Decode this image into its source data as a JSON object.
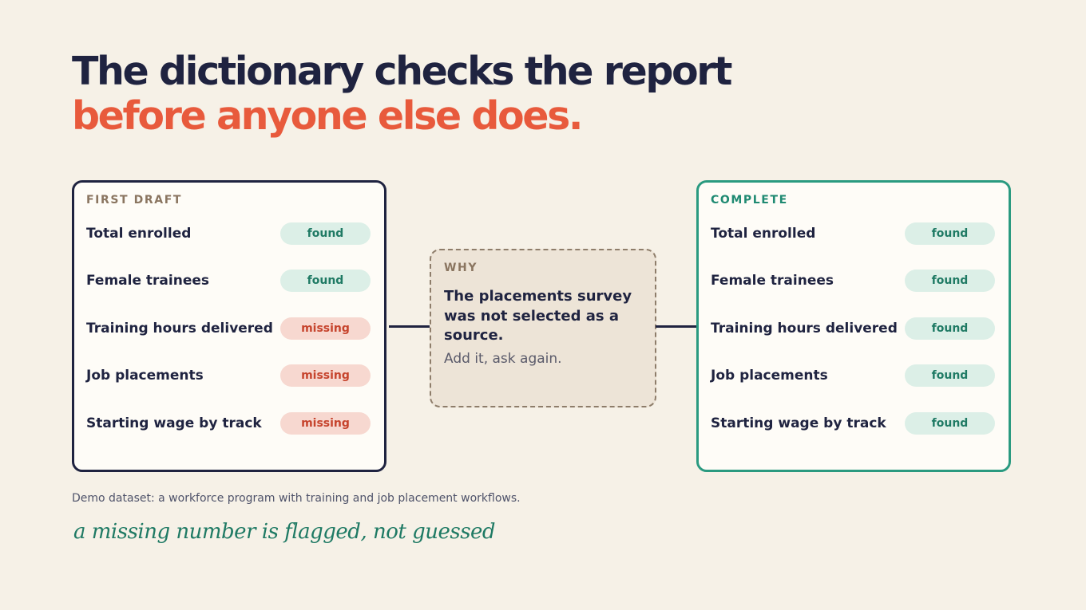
{
  "headline": {
    "line1": "The dictionary checks the report",
    "line2": "before anyone else does."
  },
  "colors": {
    "navy": "#1f2340",
    "coral": "#e85a3c",
    "teal": "#2a9a80",
    "found_bg": "#dcefe7",
    "missing_bg": "#f7d8d0"
  },
  "first_draft": {
    "label": "FIRST DRAFT",
    "rows": [
      {
        "label": "Total enrolled",
        "status": "found"
      },
      {
        "label": "Female trainees",
        "status": "found"
      },
      {
        "label": "Training hours delivered",
        "status": "missing"
      },
      {
        "label": "Job placements",
        "status": "missing"
      },
      {
        "label": "Starting wage by track",
        "status": "missing"
      }
    ]
  },
  "why": {
    "label": "WHY",
    "body": "The placements survey was not selected as a source.",
    "sub": "Add it, ask again."
  },
  "complete": {
    "label": "COMPLETE",
    "rows": [
      {
        "label": "Total enrolled",
        "status": "found"
      },
      {
        "label": "Female trainees",
        "status": "found"
      },
      {
        "label": "Training hours delivered",
        "status": "found"
      },
      {
        "label": "Job placements",
        "status": "found"
      },
      {
        "label": "Starting wage by track",
        "status": "found"
      }
    ]
  },
  "footnote": "Demo dataset: a workforce program with training and job placement workflows.",
  "tagline": "a missing number is flagged, not guessed"
}
